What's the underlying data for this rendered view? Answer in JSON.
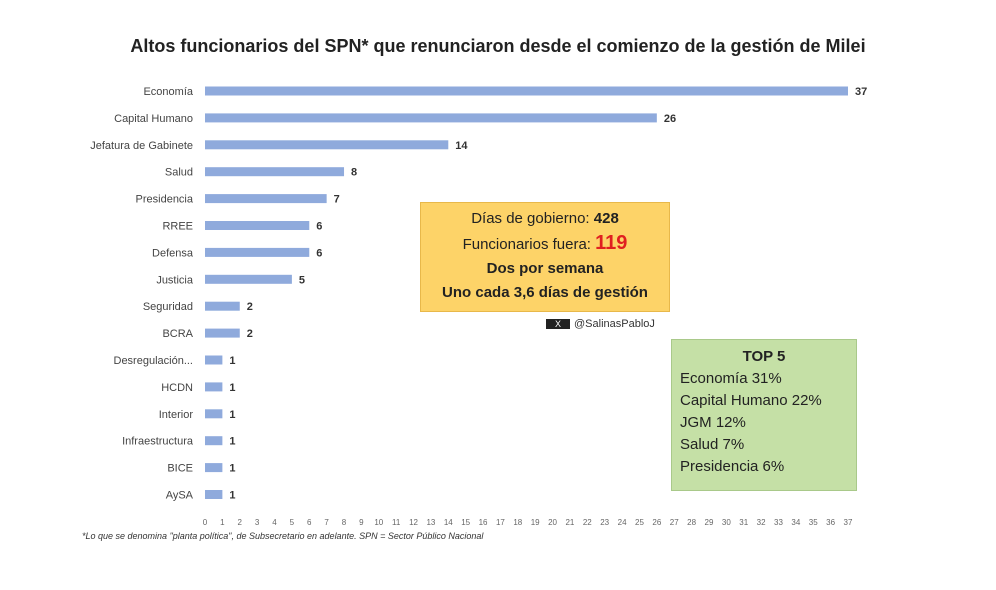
{
  "chart_data": {
    "type": "bar",
    "orientation": "horizontal",
    "title": "Altos funcionarios del SPN* que renunciaron desde el comienzo de la gestión de Milei",
    "categories": [
      "Economía",
      "Capital Humano",
      "Jefatura de Gabinete",
      "Salud",
      "Presidencia",
      "RREE",
      "Defensa",
      "Justicia",
      "Seguridad",
      "BCRA",
      "Desregulación...",
      "HCDN",
      "Interior",
      "Infraestructura",
      "BICE",
      "AySA"
    ],
    "values": [
      37,
      26,
      14,
      8,
      7,
      6,
      6,
      5,
      2,
      2,
      1,
      1,
      1,
      1,
      1,
      1
    ],
    "xlim": [
      0,
      37
    ],
    "xticks": [
      "0",
      "1",
      "2",
      "3",
      "4",
      "5",
      "6",
      "7",
      "8",
      "9",
      "10",
      "11",
      "12",
      "13",
      "14",
      "15",
      "16",
      "17",
      "18",
      "19",
      "20",
      "21",
      "22",
      "23",
      "24",
      "25",
      "26",
      "27",
      "28",
      "29",
      "30",
      "31",
      "32",
      "33",
      "34",
      "35",
      "36",
      "37"
    ],
    "bar_color": "#8faadc",
    "grid": false
  },
  "infobox": {
    "line1_label": "Días de gobierno:",
    "line1_value": "428",
    "line2_label": "Funcionarios fuera:",
    "line2_value": "119",
    "line3": "Dos por semana",
    "line4": "Uno cada 3,6 días de gestión",
    "highlight_color": "#e02020"
  },
  "handle": {
    "icon": "x-logo-icon",
    "icon_text": "X",
    "text": "@SalinasPabloJ"
  },
  "top5": {
    "title": "TOP 5",
    "items": [
      "Economía 31%",
      "Capital Humano 22%",
      "JGM 12%",
      "Salud 7%",
      "Presidencia 6%"
    ]
  },
  "footnote": "*Lo que se denomina \"planta política\", de Subsecretario en adelante. SPN = Sector Público Nacional"
}
